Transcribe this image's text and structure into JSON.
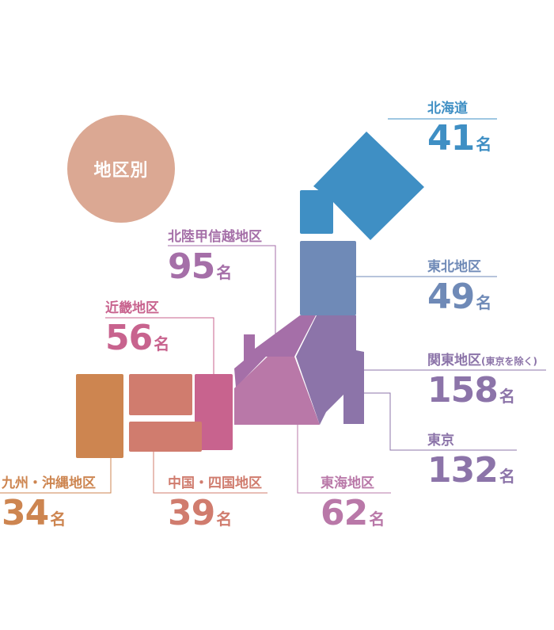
{
  "badge": "地区別",
  "colors": {
    "hokkaido": "#3f8fc4",
    "tohoku": "#6f8ab7",
    "kanto": "#8c74a9",
    "tokyo": "#8c74a9",
    "hokuriku": "#a56fa8",
    "tokai": "#b978a8",
    "kinki": "#c8638e",
    "chugoku": "#d07c6e",
    "kyushu": "#cd8550",
    "badge": "#dba893"
  },
  "regions": {
    "hokkaido": {
      "name": "北海道",
      "value": "41",
      "unit": "名"
    },
    "tohoku": {
      "name": "東北地区",
      "value": "49",
      "unit": "名"
    },
    "kanto": {
      "name": "関東地区",
      "note": "(東京を除く)",
      "value": "158",
      "unit": "名"
    },
    "tokyo": {
      "name": "東京",
      "value": "132",
      "unit": "名"
    },
    "hokuriku": {
      "name": "北陸甲信越地区",
      "value": "95",
      "unit": "名"
    },
    "kinki": {
      "name": "近畿地区",
      "value": "56",
      "unit": "名"
    },
    "tokai": {
      "name": "東海地区",
      "value": "62",
      "unit": "名"
    },
    "chugoku": {
      "name": "中国・四国地区",
      "value": "39",
      "unit": "名"
    },
    "kyushu": {
      "name": "九州・沖縄地区",
      "value": "34",
      "unit": "名"
    }
  }
}
